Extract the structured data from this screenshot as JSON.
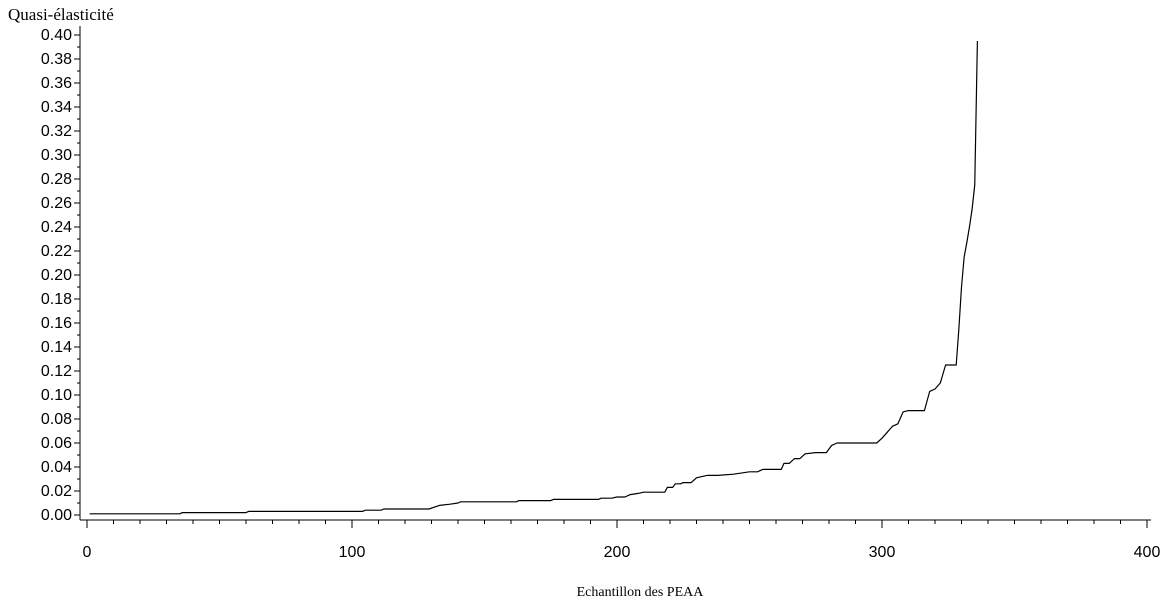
{
  "chart_data": {
    "type": "line",
    "title": "",
    "xlabel": "Echantillon des PEAA",
    "ylabel": "Quasi-élasticité",
    "xlim": [
      0,
      400
    ],
    "ylim": [
      0,
      0.4
    ],
    "x_ticks": [
      0,
      100,
      200,
      300,
      400
    ],
    "x_tick_labels": [
      "0",
      "100",
      "200",
      "300",
      "400"
    ],
    "y_ticks": [
      0,
      0.02,
      0.04,
      0.06,
      0.08,
      0.1,
      0.12,
      0.14,
      0.16,
      0.18,
      0.2,
      0.22,
      0.24,
      0.26,
      0.28,
      0.3,
      0.32,
      0.34,
      0.36,
      0.38,
      0.4
    ],
    "y_tick_labels": [
      "0.00",
      "0.02",
      "0.04",
      "0.06",
      "0.08",
      "0.10",
      "0.12",
      "0.14",
      "0.16",
      "0.18",
      "0.20",
      "0.22",
      "0.24",
      "0.26",
      "0.28",
      "0.30",
      "0.32",
      "0.34",
      "0.36",
      "0.38",
      "0.40"
    ],
    "grid": false,
    "line_color": "#000000",
    "series": [
      {
        "x": [
          1,
          35,
          36,
          60,
          61,
          104,
          105,
          111,
          112,
          129,
          133,
          137,
          140,
          141,
          162,
          163,
          175,
          176,
          193,
          194,
          198,
          200,
          203,
          205,
          208,
          210,
          212,
          218,
          219,
          221,
          222,
          224,
          225,
          228,
          230,
          232,
          234,
          238,
          244,
          250,
          253,
          255,
          262,
          263,
          265,
          267,
          269,
          271,
          275,
          279,
          281,
          283,
          298,
          300,
          302,
          304,
          306,
          308,
          310,
          316,
          318,
          320,
          322,
          324,
          325,
          328,
          329,
          330,
          331,
          332,
          333,
          334,
          335,
          336
        ],
        "y": [
          0.001,
          0.001,
          0.002,
          0.002,
          0.003,
          0.003,
          0.004,
          0.004,
          0.005,
          0.005,
          0.008,
          0.009,
          0.01,
          0.011,
          0.011,
          0.012,
          0.012,
          0.013,
          0.013,
          0.014,
          0.014,
          0.015,
          0.015,
          0.017,
          0.018,
          0.019,
          0.019,
          0.019,
          0.023,
          0.023,
          0.026,
          0.026,
          0.027,
          0.027,
          0.031,
          0.032,
          0.033,
          0.033,
          0.034,
          0.036,
          0.036,
          0.038,
          0.038,
          0.043,
          0.043,
          0.047,
          0.047,
          0.051,
          0.052,
          0.052,
          0.058,
          0.06,
          0.06,
          0.064,
          0.069,
          0.074,
          0.076,
          0.086,
          0.087,
          0.087,
          0.103,
          0.105,
          0.11,
          0.125,
          0.125,
          0.125,
          0.155,
          0.19,
          0.215,
          0.227,
          0.24,
          0.255,
          0.275,
          0.395
        ]
      }
    ]
  }
}
